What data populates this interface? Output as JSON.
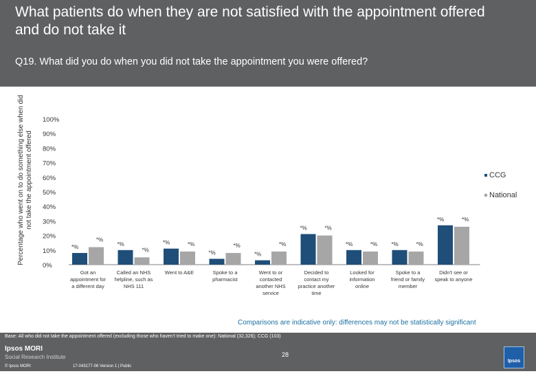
{
  "header": {
    "title": "What patients do when they are not satisfied with the appointment offered and do not take it",
    "question": "Q19. What did you do when you did not take the appointment you were offered?"
  },
  "colors": {
    "ccg": "#1f4e79",
    "national": "#a6a6a6",
    "header_bg": "#5f6062",
    "note": "#1a6fa0"
  },
  "chart_data": {
    "type": "bar",
    "ylabel": "Percentage who went on to do something else when did not take the appointment offered",
    "ylim": [
      0,
      100
    ],
    "yticks": [
      "0%",
      "10%",
      "20%",
      "30%",
      "40%",
      "50%",
      "60%",
      "70%",
      "80%",
      "90%",
      "100%"
    ],
    "categories": [
      [
        "Got an",
        "appointment for",
        "a different day"
      ],
      [
        "Called an NHS",
        "helpline, such as",
        "NHS 111"
      ],
      [
        "Went to A&E"
      ],
      [
        "Spoke to a",
        "pharmacist"
      ],
      [
        "Went to or",
        "contacted",
        "another NHS",
        "service"
      ],
      [
        "Decided to",
        "contact my",
        "practice another",
        "time"
      ],
      [
        "Looked for",
        "information",
        "online"
      ],
      [
        "Spoke to a",
        "friend or family",
        "member"
      ],
      [
        "Didn't see or",
        "speak to anyone"
      ]
    ],
    "series": [
      {
        "name": "CCG",
        "values": [
          8,
          10,
          11,
          4,
          3,
          21,
          10,
          10,
          27
        ],
        "labels": [
          "*%",
          "*%",
          "*%",
          "*%",
          "*%",
          "*%",
          "*%",
          "*%",
          "*%"
        ]
      },
      {
        "name": "National",
        "values": [
          12,
          5,
          9,
          8,
          9,
          20,
          9,
          9,
          26
        ],
        "labels": [
          "*%",
          "*%",
          "*%",
          "*%",
          "*%",
          "*%",
          "*%",
          "*%",
          "*%"
        ]
      }
    ],
    "legend_position": "right",
    "grid": false
  },
  "note": "Comparisons are indicative only: differences may not be statistically significant",
  "footer": {
    "base": "Base: All who did not take the appointment offered (excluding those who haven't tried to make one): National (32,326); CCG (103)",
    "logo_line1": "Ipsos MORI",
    "logo_line2": "Social Research Institute",
    "copyright": "© Ipsos MORI",
    "job_ref": "17-043177-06 Version 1 | Public",
    "page_number": "28",
    "brand_logo": "Ipsos"
  }
}
